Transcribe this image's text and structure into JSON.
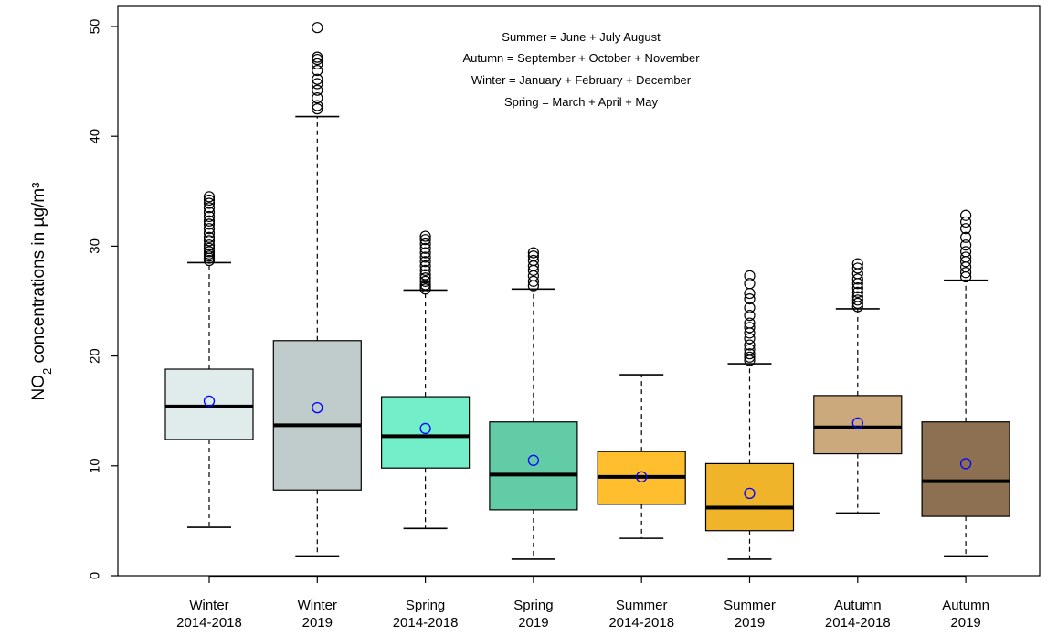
{
  "chart_data": {
    "type": "box",
    "title": "",
    "xlabel": "",
    "ylabel": {
      "prefix": "NO",
      "subscript": "2",
      "suffix": " concentrations in µg/m³"
    },
    "ylim": [
      0,
      50
    ],
    "yticks": [
      0,
      10,
      20,
      30,
      40,
      50
    ],
    "grid": false,
    "legend": "none",
    "annotations": [
      "Summer = June + July  August",
      "Autumn = September + October + November",
      "Winter = January + February + December",
      "Spring = March + April + May"
    ],
    "mean_marker_color": "#0000ff",
    "series": [
      {
        "label_line1": "Winter",
        "label_line2": "2014-2018",
        "color": "#e0ecec",
        "whisker_low": 4.4,
        "q1": 12.4,
        "median": 15.4,
        "q3": 18.8,
        "whisker_high": 28.5,
        "mean": 15.9,
        "outliers": [
          28.7,
          28.9,
          29.1,
          29.3,
          29.5,
          29.8,
          30.1,
          30.5,
          30.8,
          31.2,
          31.6,
          32.0,
          32.3,
          32.7,
          33.1,
          33.5,
          33.9,
          34.2,
          34.5
        ]
      },
      {
        "label_line1": "Winter",
        "label_line2": "2019",
        "color": "#c0cccb",
        "whisker_low": 1.8,
        "q1": 7.8,
        "median": 13.7,
        "q3": 21.4,
        "whisker_high": 41.8,
        "mean": 15.3,
        "outliers": [
          42.5,
          42.8,
          43.5,
          44.2,
          44.8,
          45.2,
          46.0,
          46.6,
          47.0,
          47.2,
          49.9
        ]
      },
      {
        "label_line1": "Spring",
        "label_line2": "2014-2018",
        "color": "#72eec9",
        "whisker_low": 4.3,
        "q1": 9.8,
        "median": 12.7,
        "q3": 16.3,
        "whisker_high": 26.0,
        "mean": 13.4,
        "outliers": [
          26.1,
          26.3,
          26.5,
          26.8,
          27.1,
          27.4,
          27.8,
          28.2,
          28.6,
          29.0,
          29.4,
          29.8,
          30.2,
          30.6,
          30.9
        ]
      },
      {
        "label_line1": "Spring",
        "label_line2": "2019",
        "color": "#62cca7",
        "whisker_low": 1.5,
        "q1": 6.0,
        "median": 9.2,
        "q3": 14.0,
        "whisker_high": 26.1,
        "mean": 10.5,
        "outliers": [
          26.4,
          26.8,
          27.3,
          27.8,
          28.2,
          28.7,
          29.1,
          29.4
        ]
      },
      {
        "label_line1": "Summer",
        "label_line2": "2014-2018",
        "color": "#ffbe2e",
        "whisker_low": 3.4,
        "q1": 6.5,
        "median": 9.0,
        "q3": 11.3,
        "whisker_high": 18.3,
        "mean": 9.0,
        "outliers": []
      },
      {
        "label_line1": "Summer",
        "label_line2": "2019",
        "color": "#efb429",
        "whisker_low": 1.5,
        "q1": 4.1,
        "median": 6.2,
        "q3": 10.2,
        "whisker_high": 19.3,
        "mean": 7.5,
        "outliers": [
          19.6,
          19.9,
          20.2,
          20.6,
          21.0,
          21.6,
          22.1,
          22.6,
          23.0,
          23.7,
          24.4,
          25.2,
          25.7,
          26.6,
          27.3
        ]
      },
      {
        "label_line1": "Autumn",
        "label_line2": "2014-2018",
        "color": "#cca97d",
        "whisker_low": 5.7,
        "q1": 11.1,
        "median": 13.5,
        "q3": 16.4,
        "whisker_high": 24.3,
        "mean": 13.9,
        "outliers": [
          24.5,
          24.8,
          25.1,
          25.4,
          25.8,
          26.2,
          26.6,
          27.0,
          27.5,
          28.0,
          28.4
        ]
      },
      {
        "label_line1": "Autumn",
        "label_line2": "2019",
        "color": "#8c7051",
        "whisker_low": 1.8,
        "q1": 5.4,
        "median": 8.6,
        "q3": 14.0,
        "whisker_high": 26.9,
        "mean": 10.2,
        "outliers": [
          27.2,
          27.6,
          28.1,
          28.6,
          29.0,
          29.5,
          30.1,
          30.8,
          31.6,
          32.2,
          32.8
        ]
      }
    ]
  }
}
